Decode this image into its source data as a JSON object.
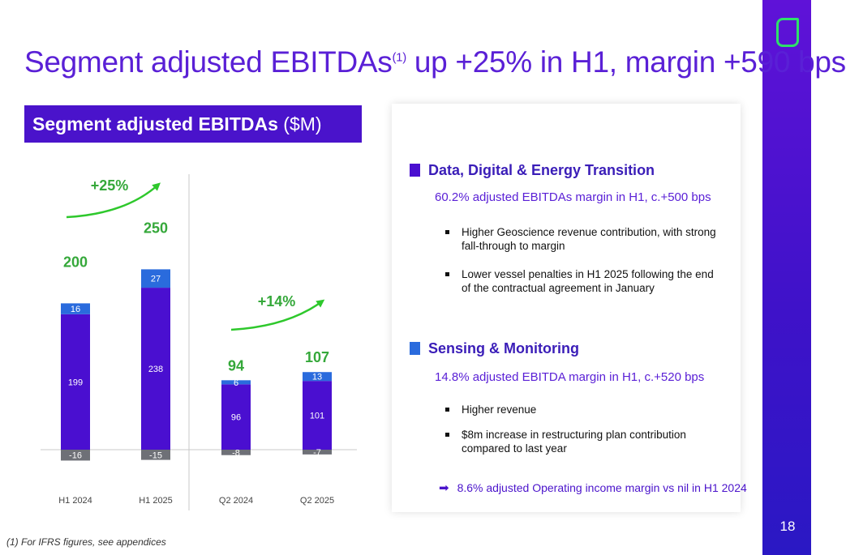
{
  "title": {
    "main": "Segment adjusted EBITDAs",
    "sup": "(1)",
    "rest": " up +25% in H1, margin +590 bps"
  },
  "chart_header": {
    "bold": "Segment adjusted EBITDAs",
    "unit": " ($M)"
  },
  "chart_data": {
    "type": "bar",
    "stacked": true,
    "categories": [
      "H1 2024",
      "H1 2025",
      "Q2 2024",
      "Q2 2025"
    ],
    "series": [
      {
        "values": [
          199,
          238,
          96,
          101
        ],
        "color": "#4a0fd0"
      },
      {
        "values": [
          16,
          27,
          6,
          13
        ],
        "color": "#2a6bdd"
      },
      {
        "values": [
          -16,
          -15,
          -8,
          -7
        ],
        "color": "#6e7077"
      }
    ],
    "totals": [
      200,
      250,
      94,
      107
    ],
    "growth_annotations": [
      {
        "label": "+25%",
        "from": "H1 2024",
        "to": "H1 2025"
      },
      {
        "label": "+14%",
        "from": "Q2 2024",
        "to": "Q2 2025"
      }
    ],
    "colors": {
      "total_labels": "#35a83a",
      "growth_arrow": "#2ec82c"
    }
  },
  "panel": {
    "section1": {
      "title": "Data, Digital & Energy Transition",
      "color": "#4a0fd0",
      "subtitle": "60.2% adjusted EBITDAs margin in H1, c.+500 bps",
      "bullets": [
        "Higher Geoscience revenue contribution, with strong fall-through to margin",
        "Lower vessel penalties in H1 2025 following the end of the contractual agreement in January"
      ]
    },
    "section2": {
      "title": "Sensing & Monitoring",
      "color": "#2a6bdd",
      "subtitle": "14.8% adjusted EBITDA margin in H1, c.+520 bps",
      "bullets": [
        "Higher revenue",
        "$8m increase in restructuring plan contribution compared to last year"
      ]
    },
    "callout": {
      "icon": "right-arrow-icon",
      "text": "8.6% adjusted Operating income margin vs nil in H1 2024"
    }
  },
  "footnote": "(1) For IFRS figures, see appendices",
  "page_number": "18"
}
